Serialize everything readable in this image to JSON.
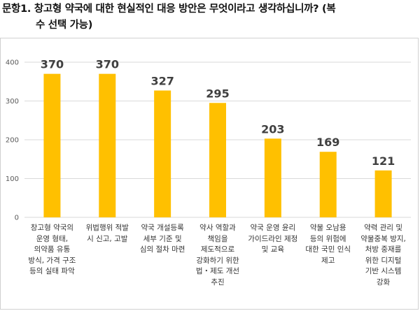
{
  "question": {
    "line1": "문항1. 창고형 약국에 대한 현실적인 대응 방안은 무엇이라고 생각하십니까? (복",
    "line2": "수 선택 가능)"
  },
  "colors": {
    "bar": "#FFC000",
    "grid": "#D9D9D9",
    "axis_text": "#595959",
    "value_text": "#404040"
  },
  "chart_data": {
    "type": "bar",
    "title": "",
    "xlabel": "",
    "ylabel": "",
    "ylim": [
      0,
      400
    ],
    "yticks": [
      0,
      100,
      200,
      300,
      400
    ],
    "grid": true,
    "categories": [
      "창고형 약국의 운영 형태, 의약품 유통 방식, 가격 구조 등의 실태 파악",
      "위법행위 적발 시 신고, 고발",
      "약국 개설등록 세부 기준 및 심의 절차 마련",
      "약사 역할과 책임을 제도적으로 강화하기 위한 법・제도 개선 추진",
      "약국 운영 윤리 가이드라인 제정 및 교육",
      "약물 오남용 등의 위험에 대한 국민 인식 제고",
      "약력 관리 및 약물중복 방지, 처방 중재를 위한 디지털 기반 시스템 강화"
    ],
    "category_lines": [
      [
        "창고형 약국의",
        "운영 형태,",
        "의약품 유통",
        "방식, 가격 구조",
        "등의 실태 파악"
      ],
      [
        "위법행위 적발",
        "시 신고, 고발"
      ],
      [
        "약국 개설등록",
        "세부 기준 및",
        "심의 절차 마련"
      ],
      [
        "약사 역할과",
        "책임을",
        "제도적으로",
        "강화하기 위한",
        "법・제도 개선",
        "추진"
      ],
      [
        "약국 운영 윤리",
        "가이드라인 제정",
        "및 교육"
      ],
      [
        "약물 오남용",
        "등의 위험에",
        "대한 국민 인식",
        "제고"
      ],
      [
        "약력 관리 및",
        "약물중복 방지,",
        "처방 중재를",
        "위한 디지털",
        "기반 시스템",
        "강화"
      ]
    ],
    "values": [
      370,
      370,
      327,
      295,
      203,
      169,
      121
    ]
  }
}
